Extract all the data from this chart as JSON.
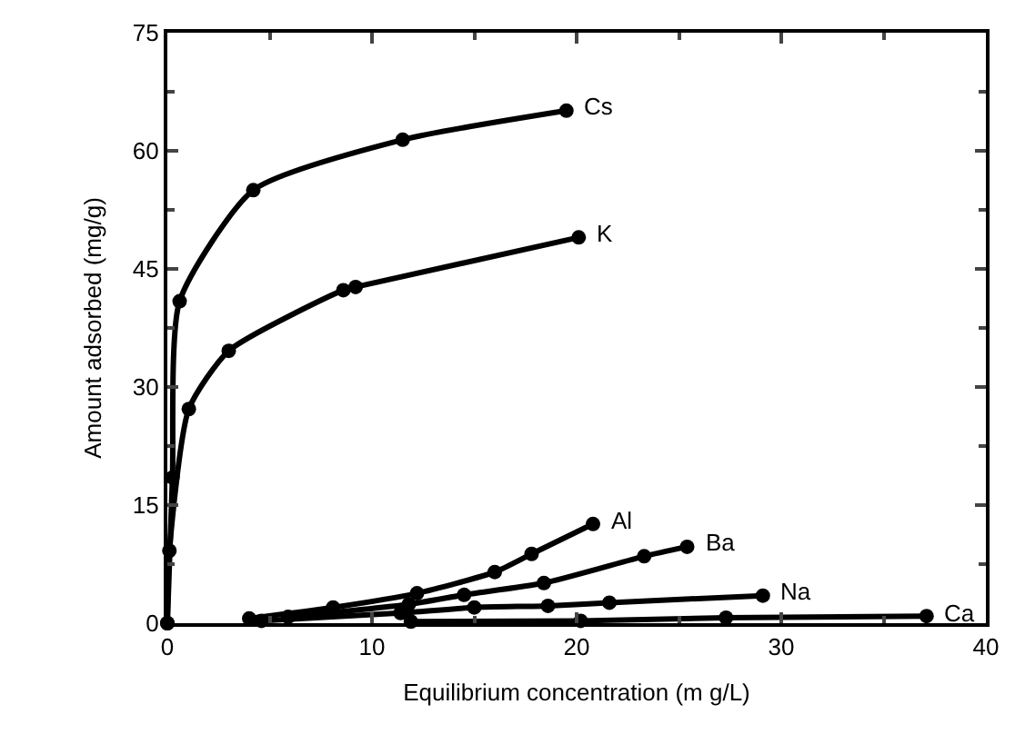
{
  "chart_data": {
    "type": "line",
    "xlabel": "Equilibrium concentration (m g/L)",
    "ylabel": "Amount adsorbed (mg/g)",
    "xlim": [
      0,
      40
    ],
    "xticks": [
      0,
      10,
      20,
      30,
      40
    ],
    "ylim": [
      0,
      75
    ],
    "yticks": [
      0,
      15,
      30,
      45,
      60,
      75
    ],
    "grid": false,
    "legend": false,
    "marker": "circle",
    "line_style": "solid",
    "series": [
      {
        "name": "Cs",
        "color": "#000000",
        "x": [
          0,
          0.25,
          0.6,
          4.2,
          11.5,
          19.5
        ],
        "values": [
          0,
          18.5,
          40.9,
          55,
          61.4,
          65.1
        ]
      },
      {
        "name": "K",
        "color": "#000000",
        "x": [
          0,
          0.1,
          1.05,
          3.0,
          8.6,
          9.2,
          20.1
        ],
        "values": [
          0,
          9.2,
          27.2,
          34.6,
          42.3,
          42.7,
          49
        ]
      },
      {
        "name": "Al",
        "color": "#000000",
        "x": [
          4,
          8.1,
          12.2,
          16.0,
          17.8,
          20.8
        ],
        "values": [
          0.6,
          2.0,
          3.8,
          6.5,
          8.8,
          12.6
        ]
      },
      {
        "name": "Ba",
        "color": "#000000",
        "x": [
          5.9,
          11.8,
          14.5,
          18.4,
          23.3,
          25.4
        ],
        "values": [
          0.8,
          2.4,
          3.6,
          5.1,
          8.5,
          9.7
        ]
      },
      {
        "name": "Na",
        "color": "#000000",
        "x": [
          4.6,
          11.4,
          15.0,
          18.6,
          21.6,
          29.1
        ],
        "values": [
          0.3,
          1.3,
          2.0,
          2.2,
          2.6,
          3.5
        ]
      },
      {
        "name": "Ca",
        "color": "#000000",
        "x": [
          11.9,
          20.2,
          27.3,
          37.1
        ],
        "values": [
          0.2,
          0.3,
          0.7,
          0.9
        ]
      }
    ]
  }
}
